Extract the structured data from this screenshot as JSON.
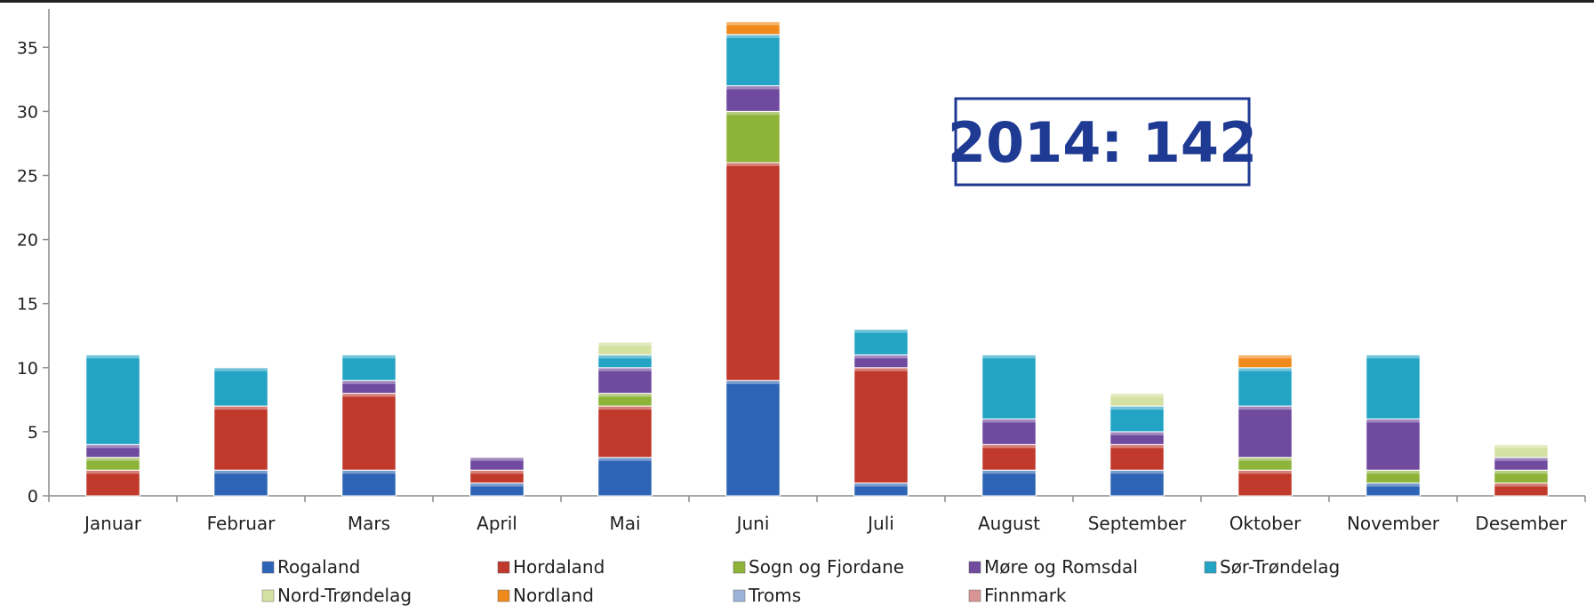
{
  "chart_data": {
    "type": "bar",
    "stacked": true,
    "categories": [
      "Januar",
      "Februar",
      "Mars",
      "April",
      "Mai",
      "Juni",
      "Juli",
      "August",
      "September",
      "Oktober",
      "November",
      "Desember"
    ],
    "series": [
      {
        "name": "Rogaland",
        "color": "#2e64b5",
        "values": [
          0,
          2,
          2,
          1,
          3,
          9,
          1,
          2,
          2,
          0,
          1,
          0
        ]
      },
      {
        "name": "Hordaland",
        "color": "#c0392b",
        "values": [
          2,
          5,
          6,
          1,
          4,
          17,
          9,
          2,
          2,
          2,
          0,
          1
        ]
      },
      {
        "name": "Sogn og Fjordane",
        "color": "#8db339",
        "values": [
          1,
          0,
          0,
          0,
          1,
          4,
          0,
          0,
          0,
          1,
          1,
          1
        ]
      },
      {
        "name": "Møre og Romsdal",
        "color": "#6f4a9e",
        "values": [
          1,
          0,
          1,
          1,
          2,
          2,
          1,
          2,
          1,
          4,
          4,
          1
        ]
      },
      {
        "name": "Sør-Trøndelag",
        "color": "#24a4c4",
        "values": [
          7,
          3,
          2,
          0,
          1,
          4,
          2,
          5,
          2,
          3,
          5,
          0
        ]
      },
      {
        "name": "Nord-Trøndelag",
        "color": "#d5e1a3",
        "values": [
          0,
          0,
          0,
          0,
          1,
          0,
          0,
          0,
          1,
          0,
          0,
          1
        ]
      },
      {
        "name": "Nordland",
        "color": "#f08a1c",
        "values": [
          0,
          0,
          0,
          0,
          0,
          1,
          0,
          0,
          0,
          1,
          0,
          0
        ]
      },
      {
        "name": "Troms",
        "color": "#9bb3d6",
        "values": [
          0,
          0,
          0,
          0,
          0,
          0,
          0,
          0,
          0,
          0,
          0,
          0
        ]
      },
      {
        "name": "Finnmark",
        "color": "#d99594",
        "values": [
          0,
          0,
          0,
          0,
          0,
          0,
          0,
          0,
          0,
          0,
          0,
          0
        ]
      }
    ],
    "y_ticks": [
      "0",
      "5",
      "10",
      "15",
      "20",
      "25",
      "30",
      "35"
    ],
    "ylim": [
      0,
      38
    ],
    "grid": false,
    "legend_position": "bottom",
    "annotation": "2014: 142"
  }
}
